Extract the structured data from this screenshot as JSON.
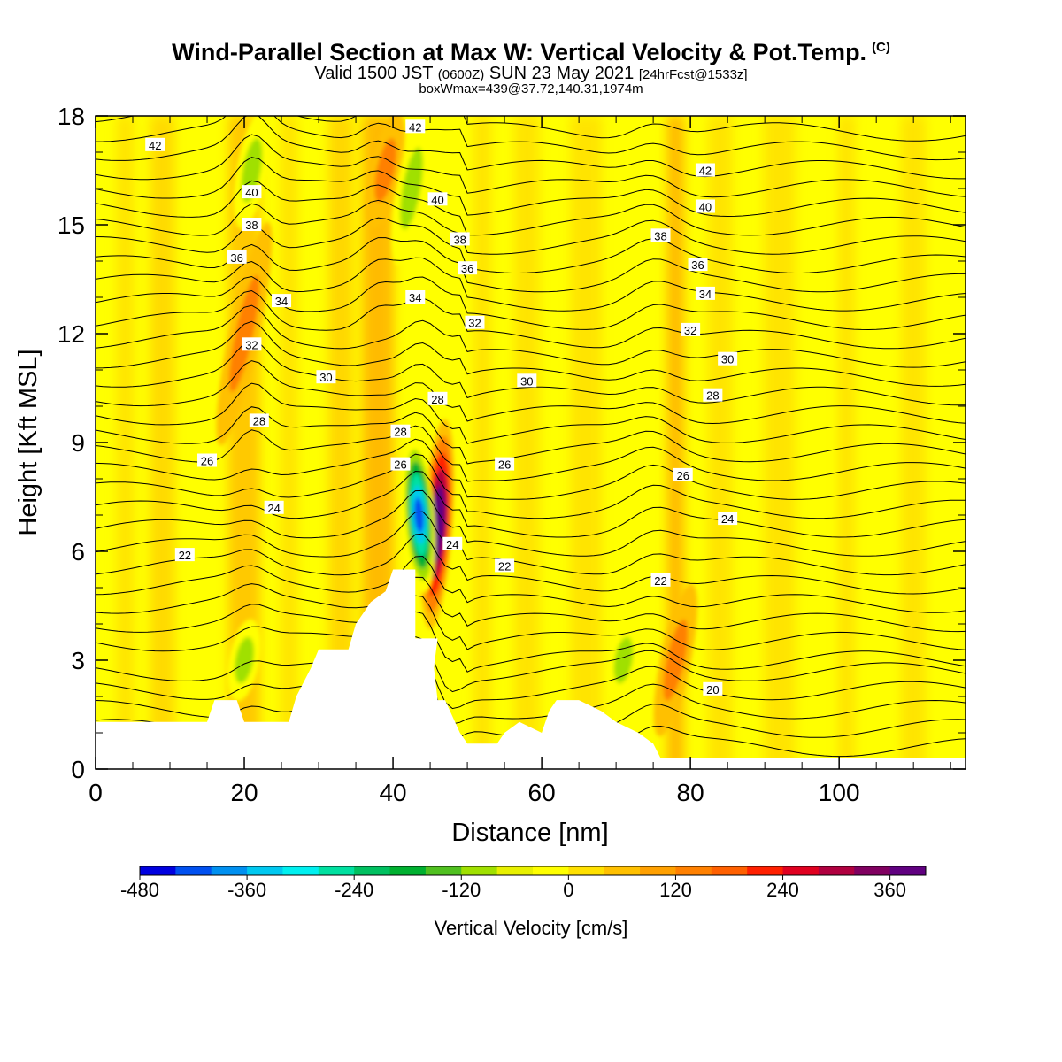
{
  "title": {
    "main": "Wind-Parallel Section at Max W: Vertical Velocity & Pot.Temp.",
    "copyright": "(C)",
    "valid_prefix": "Valid 1500 JST",
    "valid_utc": "(0600Z)",
    "valid_date": "SUN 23 May 2021",
    "forecast": "[24hrFcst@1533z]",
    "box_info": "boxWmax=439@37.72,140.31,1974m"
  },
  "colorbar": {
    "title": "Vertical Velocity [cm/s]",
    "tick_labels": [
      "-480",
      "-360",
      "-240",
      "-120",
      "0",
      "120",
      "240",
      "360"
    ],
    "colors": [
      "#0000e0",
      "#0050f0",
      "#0090f0",
      "#00c8f0",
      "#00f0f0",
      "#00e0a0",
      "#00c060",
      "#00b030",
      "#50c020",
      "#a0e000",
      "#e8f000",
      "#ffff00",
      "#ffe000",
      "#ffc000",
      "#ffa000",
      "#ff8000",
      "#ff6000",
      "#ff2000",
      "#e00020",
      "#b00040",
      "#800060",
      "#600080"
    ]
  },
  "chart_data": {
    "type": "heatmap",
    "xlabel": "Distance [nm]",
    "ylabel": "Height [Kft MSL]",
    "xlim": [
      0,
      117
    ],
    "ylim": [
      0,
      18
    ],
    "x_ticks": [
      "0",
      "20",
      "40",
      "60",
      "80",
      "100"
    ],
    "y_ticks": [
      "0",
      "3",
      "6",
      "9",
      "12",
      "15",
      "18"
    ],
    "field": "Vertical Velocity [cm/s]",
    "terrain": [
      [
        0,
        1.3
      ],
      [
        15,
        1.3
      ],
      [
        15.5,
        1.6
      ],
      [
        16,
        1.9
      ],
      [
        19,
        1.9
      ],
      [
        20,
        1.3
      ],
      [
        26,
        1.3
      ],
      [
        27,
        2.0
      ],
      [
        29,
        2.8
      ],
      [
        30,
        3.3
      ],
      [
        34,
        3.3
      ],
      [
        35,
        4.0
      ],
      [
        36,
        4.3
      ],
      [
        37,
        4.6
      ],
      [
        39,
        4.9
      ],
      [
        40,
        5.5
      ],
      [
        43,
        5.5
      ],
      [
        43,
        3.6
      ],
      [
        46,
        3.6
      ],
      [
        45.5,
        2.8
      ],
      [
        46,
        1.9
      ],
      [
        47,
        1.9
      ],
      [
        49,
        1.0
      ],
      [
        50,
        0.7
      ],
      [
        54,
        0.7
      ],
      [
        55,
        1.0
      ],
      [
        57,
        1.3
      ],
      [
        60,
        1.0
      ],
      [
        61,
        1.6
      ],
      [
        62,
        1.9
      ],
      [
        65,
        1.9
      ],
      [
        68,
        1.6
      ],
      [
        70,
        1.3
      ],
      [
        73,
        1.0
      ],
      [
        75,
        0.7
      ],
      [
        76,
        0.3
      ],
      [
        117,
        0.3
      ]
    ],
    "updrafts": [
      {
        "x": 46,
        "y_range": [
          4,
          9.5
        ],
        "w": 439
      },
      {
        "x": 20,
        "y_range": [
          9,
          15
        ],
        "w": 150
      },
      {
        "x": 39,
        "y_range": [
          15,
          18
        ],
        "w": 150
      },
      {
        "x": 78,
        "y_range": [
          1,
          5
        ],
        "w": 150
      }
    ],
    "downdrafts": [
      {
        "x": 43.5,
        "y_range": [
          5,
          9
        ],
        "w": -420
      },
      {
        "x": 20,
        "y_range": [
          2,
          4
        ],
        "w": -120
      },
      {
        "x": 21,
        "y_range": [
          15,
          18
        ],
        "w": -120
      },
      {
        "x": 42.5,
        "y_range": [
          14,
          18
        ],
        "w": -150
      },
      {
        "x": 71,
        "y_range": [
          2,
          4
        ],
        "w": -90
      }
    ],
    "isentropes": [
      {
        "theta": "20",
        "label_x": 83,
        "label_y": 2.2
      },
      {
        "theta": "22",
        "label_x": 12,
        "label_y": 5.9
      },
      {
        "theta": "22",
        "label_x": 55,
        "label_y": 5.6
      },
      {
        "theta": "22",
        "label_x": 76,
        "label_y": 5.2
      },
      {
        "theta": "24",
        "label_x": 24,
        "label_y": 7.2
      },
      {
        "theta": "24",
        "label_x": 48,
        "label_y": 6.2
      },
      {
        "theta": "24",
        "label_x": 85,
        "label_y": 6.9
      },
      {
        "theta": "26",
        "label_x": 15,
        "label_y": 8.5
      },
      {
        "theta": "26",
        "label_x": 41,
        "label_y": 8.4
      },
      {
        "theta": "26",
        "label_x": 55,
        "label_y": 8.4
      },
      {
        "theta": "26",
        "label_x": 79,
        "label_y": 8.1
      },
      {
        "theta": "28",
        "label_x": 22,
        "label_y": 9.6
      },
      {
        "theta": "28",
        "label_x": 41,
        "label_y": 9.3
      },
      {
        "theta": "28",
        "label_x": 46,
        "label_y": 10.2
      },
      {
        "theta": "28",
        "label_x": 83,
        "label_y": 10.3
      },
      {
        "theta": "30",
        "label_x": 31,
        "label_y": 10.8
      },
      {
        "theta": "30",
        "label_x": 58,
        "label_y": 10.7
      },
      {
        "theta": "30",
        "label_x": 85,
        "label_y": 11.3
      },
      {
        "theta": "32",
        "label_x": 21,
        "label_y": 11.7
      },
      {
        "theta": "32",
        "label_x": 51,
        "label_y": 12.3
      },
      {
        "theta": "32",
        "label_x": 80,
        "label_y": 12.1
      },
      {
        "theta": "34",
        "label_x": 25,
        "label_y": 12.9
      },
      {
        "theta": "34",
        "label_x": 43,
        "label_y": 13.0
      },
      {
        "theta": "34",
        "label_x": 82,
        "label_y": 13.1
      },
      {
        "theta": "36",
        "label_x": 19,
        "label_y": 14.1
      },
      {
        "theta": "36",
        "label_x": 50,
        "label_y": 13.8
      },
      {
        "theta": "36",
        "label_x": 81,
        "label_y": 13.9
      },
      {
        "theta": "38",
        "label_x": 21,
        "label_y": 15.0
      },
      {
        "theta": "38",
        "label_x": 49,
        "label_y": 14.6
      },
      {
        "theta": "38",
        "label_x": 76,
        "label_y": 14.7
      },
      {
        "theta": "40",
        "label_x": 21,
        "label_y": 15.9
      },
      {
        "theta": "40",
        "label_x": 46,
        "label_y": 15.7
      },
      {
        "theta": "40",
        "label_x": 82,
        "label_y": 15.5
      },
      {
        "theta": "42",
        "label_x": 8,
        "label_y": 17.2
      },
      {
        "theta": "42",
        "label_x": 43,
        "label_y": 17.7
      },
      {
        "theta": "42",
        "label_x": 82,
        "label_y": 16.5
      }
    ]
  }
}
